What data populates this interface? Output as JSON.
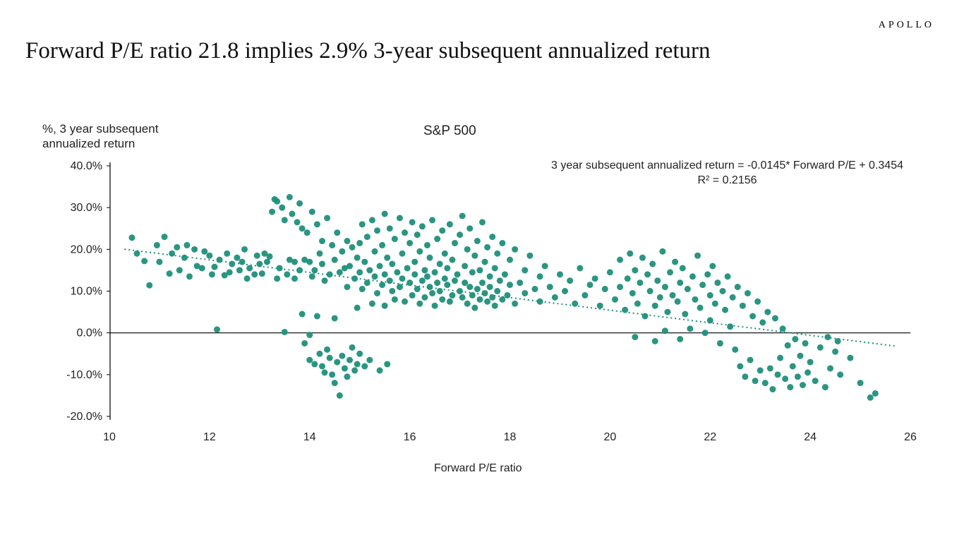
{
  "brand": "APOLLO",
  "title": "Forward P/E ratio 21.8 implies 2.9% 3-year subsequent annualized return",
  "chart": {
    "type": "scatter",
    "title": "S&P 500",
    "y_axis_title": "%, 3 year subsequent\nannualized return",
    "x_axis_title": "Forward P/E ratio",
    "regression_label_line1": "3 year subsequent annualized return = -0.0145* Forward P/E + 0.3454",
    "regression_label_line2": "R² = 0.2156",
    "x_min": 10,
    "x_max": 26,
    "y_min": -20,
    "y_max": 40,
    "x_ticks": [
      10,
      12,
      14,
      16,
      18,
      20,
      22,
      24,
      26
    ],
    "y_ticks": [
      -20,
      -10,
      0,
      10,
      20,
      30,
      40
    ],
    "y_tick_labels": [
      "-20.0%",
      "-10.0%",
      "0.0%",
      "10.0%",
      "20.0%",
      "30.0%",
      "40.0%"
    ],
    "marker_color": "#1f8f7a",
    "marker_radius": 4.5,
    "axis_color": "#000000",
    "zero_line_color": "#000000",
    "background_color": "#ffffff",
    "regression": {
      "slope_pct_per_pe": -1.45,
      "intercept_pct": 34.54,
      "line_color": "#1f8f7a",
      "line_dash": "2,4",
      "line_width": 2
    },
    "points": [
      [
        10.45,
        22.8
      ],
      [
        10.55,
        19.0
      ],
      [
        10.7,
        17.2
      ],
      [
        10.8,
        11.4
      ],
      [
        10.95,
        21.0
      ],
      [
        11.0,
        17.0
      ],
      [
        11.1,
        23.0
      ],
      [
        11.2,
        14.2
      ],
      [
        11.25,
        19.0
      ],
      [
        11.35,
        20.5
      ],
      [
        11.4,
        15.0
      ],
      [
        11.5,
        18.0
      ],
      [
        11.55,
        21.0
      ],
      [
        11.6,
        13.5
      ],
      [
        11.7,
        20.0
      ],
      [
        11.75,
        16.0
      ],
      [
        11.85,
        15.5
      ],
      [
        11.9,
        19.5
      ],
      [
        12.0,
        18.5
      ],
      [
        12.05,
        14.0
      ],
      [
        12.1,
        15.8
      ],
      [
        12.15,
        0.8
      ],
      [
        12.2,
        17.5
      ],
      [
        12.3,
        13.8
      ],
      [
        12.35,
        19.0
      ],
      [
        12.4,
        14.5
      ],
      [
        12.45,
        16.5
      ],
      [
        12.55,
        18.0
      ],
      [
        12.6,
        15.0
      ],
      [
        12.65,
        17.0
      ],
      [
        12.7,
        20.0
      ],
      [
        12.75,
        13.0
      ],
      [
        12.8,
        15.5
      ],
      [
        12.9,
        14.0
      ],
      [
        12.95,
        18.5
      ],
      [
        13.0,
        16.5
      ],
      [
        13.05,
        14.2
      ],
      [
        13.1,
        19.0
      ],
      [
        13.15,
        17.0
      ],
      [
        13.2,
        18.3
      ],
      [
        13.25,
        29.0
      ],
      [
        13.3,
        32.0
      ],
      [
        13.35,
        31.5
      ],
      [
        13.35,
        13.0
      ],
      [
        13.4,
        15.5
      ],
      [
        13.45,
        30.0
      ],
      [
        13.5,
        27.0
      ],
      [
        13.5,
        0.2
      ],
      [
        13.55,
        14.0
      ],
      [
        13.6,
        32.5
      ],
      [
        13.6,
        17.5
      ],
      [
        13.65,
        28.5
      ],
      [
        13.7,
        17.0
      ],
      [
        13.7,
        13.0
      ],
      [
        13.75,
        26.5
      ],
      [
        13.8,
        31.0
      ],
      [
        13.8,
        15.0
      ],
      [
        13.85,
        25.0
      ],
      [
        13.85,
        4.5
      ],
      [
        13.9,
        17.5
      ],
      [
        13.9,
        -2.5
      ],
      [
        13.95,
        24.0
      ],
      [
        14.0,
        17.0
      ],
      [
        14.0,
        -0.5
      ],
      [
        14.0,
        -6.5
      ],
      [
        14.05,
        29.0
      ],
      [
        14.05,
        13.5
      ],
      [
        14.1,
        15.0
      ],
      [
        14.1,
        -7.5
      ],
      [
        14.15,
        26.0
      ],
      [
        14.15,
        4.0
      ],
      [
        14.2,
        19.0
      ],
      [
        14.2,
        -5.0
      ],
      [
        14.25,
        22.0
      ],
      [
        14.25,
        16.5
      ],
      [
        14.25,
        -8.0
      ],
      [
        14.3,
        12.5
      ],
      [
        14.3,
        -9.5
      ],
      [
        14.35,
        27.5
      ],
      [
        14.35,
        -4.0
      ],
      [
        14.4,
        14.0
      ],
      [
        14.4,
        -6.0
      ],
      [
        14.45,
        21.0
      ],
      [
        14.45,
        -10.0
      ],
      [
        14.5,
        17.5
      ],
      [
        14.5,
        3.5
      ],
      [
        14.5,
        -12.0
      ],
      [
        14.55,
        24.0
      ],
      [
        14.55,
        -7.0
      ],
      [
        14.6,
        14.5
      ],
      [
        14.6,
        -15.0
      ],
      [
        14.65,
        19.5
      ],
      [
        14.65,
        -5.5
      ],
      [
        14.7,
        15.5
      ],
      [
        14.7,
        -8.5
      ],
      [
        14.75,
        22.0
      ],
      [
        14.75,
        11.0
      ],
      [
        14.75,
        -10.5
      ],
      [
        14.8,
        16.0
      ],
      [
        14.8,
        -6.5
      ],
      [
        14.85,
        20.5
      ],
      [
        14.85,
        -3.5
      ],
      [
        14.9,
        13.0
      ],
      [
        14.9,
        -9.0
      ],
      [
        14.95,
        18.0
      ],
      [
        14.95,
        6.0
      ],
      [
        14.95,
        -7.5
      ],
      [
        15.0,
        21.5
      ],
      [
        15.0,
        14.5
      ],
      [
        15.0,
        -5.0
      ],
      [
        15.05,
        26.0
      ],
      [
        15.05,
        10.5
      ],
      [
        15.1,
        17.0
      ],
      [
        15.1,
        -8.0
      ],
      [
        15.15,
        23.0
      ],
      [
        15.15,
        12.0
      ],
      [
        15.2,
        15.0
      ],
      [
        15.2,
        -6.5
      ],
      [
        15.25,
        27.0
      ],
      [
        15.25,
        7.0
      ],
      [
        15.3,
        19.5
      ],
      [
        15.3,
        13.5
      ],
      [
        15.35,
        24.5
      ],
      [
        15.35,
        9.5
      ],
      [
        15.4,
        16.0
      ],
      [
        15.4,
        -9.0
      ],
      [
        15.45,
        21.0
      ],
      [
        15.45,
        11.5
      ],
      [
        15.5,
        28.5
      ],
      [
        15.5,
        14.0
      ],
      [
        15.5,
        6.5
      ],
      [
        15.55,
        18.0
      ],
      [
        15.55,
        -7.5
      ],
      [
        15.6,
        25.0
      ],
      [
        15.6,
        12.5
      ],
      [
        15.65,
        16.5
      ],
      [
        15.65,
        10.0
      ],
      [
        15.7,
        22.5
      ],
      [
        15.7,
        8.0
      ],
      [
        15.75,
        14.5
      ],
      [
        15.8,
        27.5
      ],
      [
        15.8,
        11.0
      ],
      [
        15.85,
        19.0
      ],
      [
        15.85,
        13.0
      ],
      [
        15.9,
        24.0
      ],
      [
        15.9,
        7.5
      ],
      [
        15.95,
        15.5
      ],
      [
        16.0,
        21.5
      ],
      [
        16.0,
        12.0
      ],
      [
        16.05,
        26.5
      ],
      [
        16.05,
        9.0
      ],
      [
        16.1,
        17.0
      ],
      [
        16.1,
        14.0
      ],
      [
        16.15,
        23.5
      ],
      [
        16.15,
        10.5
      ],
      [
        16.2,
        19.5
      ],
      [
        16.2,
        7.0
      ],
      [
        16.25,
        25.5
      ],
      [
        16.25,
        12.5
      ],
      [
        16.3,
        15.0
      ],
      [
        16.3,
        8.5
      ],
      [
        16.35,
        21.0
      ],
      [
        16.35,
        13.5
      ],
      [
        16.4,
        18.0
      ],
      [
        16.4,
        11.0
      ],
      [
        16.45,
        27.0
      ],
      [
        16.45,
        9.5
      ],
      [
        16.5,
        14.5
      ],
      [
        16.5,
        6.5
      ],
      [
        16.55,
        22.5
      ],
      [
        16.55,
        12.0
      ],
      [
        16.6,
        16.5
      ],
      [
        16.6,
        10.0
      ],
      [
        16.65,
        24.5
      ],
      [
        16.65,
        8.0
      ],
      [
        16.7,
        19.0
      ],
      [
        16.7,
        13.0
      ],
      [
        16.75,
        15.5
      ],
      [
        16.75,
        11.5
      ],
      [
        16.8,
        26.0
      ],
      [
        16.8,
        7.5
      ],
      [
        16.85,
        17.5
      ],
      [
        16.85,
        9.0
      ],
      [
        16.9,
        21.5
      ],
      [
        16.9,
        12.5
      ],
      [
        16.95,
        14.0
      ],
      [
        17.0,
        23.5
      ],
      [
        17.0,
        10.0
      ],
      [
        17.05,
        28.0
      ],
      [
        17.05,
        8.5
      ],
      [
        17.1,
        16.0
      ],
      [
        17.1,
        12.0
      ],
      [
        17.15,
        20.0
      ],
      [
        17.15,
        7.0
      ],
      [
        17.2,
        25.0
      ],
      [
        17.2,
        11.0
      ],
      [
        17.25,
        14.5
      ],
      [
        17.25,
        9.0
      ],
      [
        17.3,
        18.5
      ],
      [
        17.3,
        6.0
      ],
      [
        17.35,
        22.0
      ],
      [
        17.35,
        10.5
      ],
      [
        17.4,
        15.0
      ],
      [
        17.4,
        8.0
      ],
      [
        17.45,
        26.5
      ],
      [
        17.45,
        12.0
      ],
      [
        17.5,
        17.0
      ],
      [
        17.5,
        9.5
      ],
      [
        17.55,
        20.5
      ],
      [
        17.55,
        7.5
      ],
      [
        17.6,
        13.5
      ],
      [
        17.6,
        11.0
      ],
      [
        17.65,
        23.0
      ],
      [
        17.65,
        8.5
      ],
      [
        17.7,
        15.5
      ],
      [
        17.7,
        6.5
      ],
      [
        17.75,
        19.0
      ],
      [
        17.75,
        10.0
      ],
      [
        17.8,
        12.5
      ],
      [
        17.85,
        21.5
      ],
      [
        17.85,
        8.0
      ],
      [
        17.9,
        14.0
      ],
      [
        17.95,
        9.0
      ],
      [
        18.0,
        17.5
      ],
      [
        18.0,
        11.5
      ],
      [
        18.1,
        20.0
      ],
      [
        18.1,
        7.0
      ],
      [
        18.2,
        12.0
      ],
      [
        18.3,
        15.0
      ],
      [
        18.3,
        9.5
      ],
      [
        18.4,
        18.5
      ],
      [
        18.5,
        10.5
      ],
      [
        18.6,
        13.5
      ],
      [
        18.6,
        7.5
      ],
      [
        18.7,
        16.0
      ],
      [
        18.8,
        11.0
      ],
      [
        18.9,
        8.5
      ],
      [
        19.0,
        14.0
      ],
      [
        19.1,
        10.0
      ],
      [
        19.2,
        12.5
      ],
      [
        19.3,
        7.0
      ],
      [
        19.4,
        15.5
      ],
      [
        19.5,
        9.0
      ],
      [
        19.6,
        11.5
      ],
      [
        19.7,
        13.0
      ],
      [
        19.8,
        6.5
      ],
      [
        19.9,
        10.5
      ],
      [
        20.0,
        14.5
      ],
      [
        20.1,
        8.0
      ],
      [
        20.2,
        17.5
      ],
      [
        20.2,
        11.0
      ],
      [
        20.3,
        5.5
      ],
      [
        20.35,
        13.0
      ],
      [
        20.4,
        19.0
      ],
      [
        20.45,
        9.5
      ],
      [
        20.5,
        15.0
      ],
      [
        20.5,
        -1.0
      ],
      [
        20.55,
        7.0
      ],
      [
        20.6,
        12.0
      ],
      [
        20.65,
        18.0
      ],
      [
        20.7,
        4.0
      ],
      [
        20.75,
        14.0
      ],
      [
        20.8,
        10.0
      ],
      [
        20.85,
        16.5
      ],
      [
        20.9,
        6.5
      ],
      [
        20.9,
        -2.0
      ],
      [
        20.95,
        12.5
      ],
      [
        21.0,
        8.5
      ],
      [
        21.05,
        19.5
      ],
      [
        21.1,
        11.0
      ],
      [
        21.1,
        0.5
      ],
      [
        21.15,
        5.0
      ],
      [
        21.2,
        14.5
      ],
      [
        21.25,
        9.0
      ],
      [
        21.3,
        17.0
      ],
      [
        21.35,
        7.5
      ],
      [
        21.4,
        12.0
      ],
      [
        21.4,
        -1.5
      ],
      [
        21.45,
        15.5
      ],
      [
        21.5,
        4.5
      ],
      [
        21.55,
        10.5
      ],
      [
        21.6,
        1.0
      ],
      [
        21.65,
        13.5
      ],
      [
        21.7,
        8.0
      ],
      [
        21.75,
        18.5
      ],
      [
        21.8,
        6.0
      ],
      [
        21.85,
        11.5
      ],
      [
        21.9,
        0.0
      ],
      [
        21.95,
        14.0
      ],
      [
        22.0,
        9.0
      ],
      [
        22.0,
        3.0
      ],
      [
        22.05,
        16.0
      ],
      [
        22.1,
        7.0
      ],
      [
        22.15,
        12.0
      ],
      [
        22.2,
        -2.5
      ],
      [
        22.25,
        10.0
      ],
      [
        22.3,
        5.5
      ],
      [
        22.35,
        13.5
      ],
      [
        22.4,
        1.5
      ],
      [
        22.45,
        8.5
      ],
      [
        22.5,
        -4.0
      ],
      [
        22.55,
        11.0
      ],
      [
        22.6,
        -8.0
      ],
      [
        22.65,
        6.5
      ],
      [
        22.7,
        -10.5
      ],
      [
        22.75,
        9.5
      ],
      [
        22.8,
        -6.5
      ],
      [
        22.85,
        4.0
      ],
      [
        22.9,
        -11.5
      ],
      [
        22.95,
        7.5
      ],
      [
        23.0,
        -9.0
      ],
      [
        23.05,
        2.5
      ],
      [
        23.1,
        -12.0
      ],
      [
        23.15,
        5.0
      ],
      [
        23.2,
        -8.5
      ],
      [
        23.25,
        -13.5
      ],
      [
        23.3,
        3.5
      ],
      [
        23.35,
        -10.0
      ],
      [
        23.4,
        -6.0
      ],
      [
        23.45,
        1.0
      ],
      [
        23.5,
        -11.0
      ],
      [
        23.55,
        -3.0
      ],
      [
        23.6,
        -13.0
      ],
      [
        23.65,
        -8.0
      ],
      [
        23.7,
        -1.5
      ],
      [
        23.75,
        -10.5
      ],
      [
        23.8,
        -5.5
      ],
      [
        23.85,
        -12.5
      ],
      [
        23.9,
        -2.5
      ],
      [
        23.95,
        -9.5
      ],
      [
        24.0,
        -7.0
      ],
      [
        24.1,
        -11.5
      ],
      [
        24.2,
        -3.5
      ],
      [
        24.3,
        -13.0
      ],
      [
        24.35,
        -1.0
      ],
      [
        24.4,
        -8.5
      ],
      [
        24.5,
        -4.5
      ],
      [
        24.55,
        -2.0
      ],
      [
        24.6,
        -10.0
      ],
      [
        24.8,
        -6.0
      ],
      [
        25.0,
        -12.0
      ],
      [
        25.2,
        -15.5
      ],
      [
        25.3,
        -14.5
      ]
    ]
  }
}
